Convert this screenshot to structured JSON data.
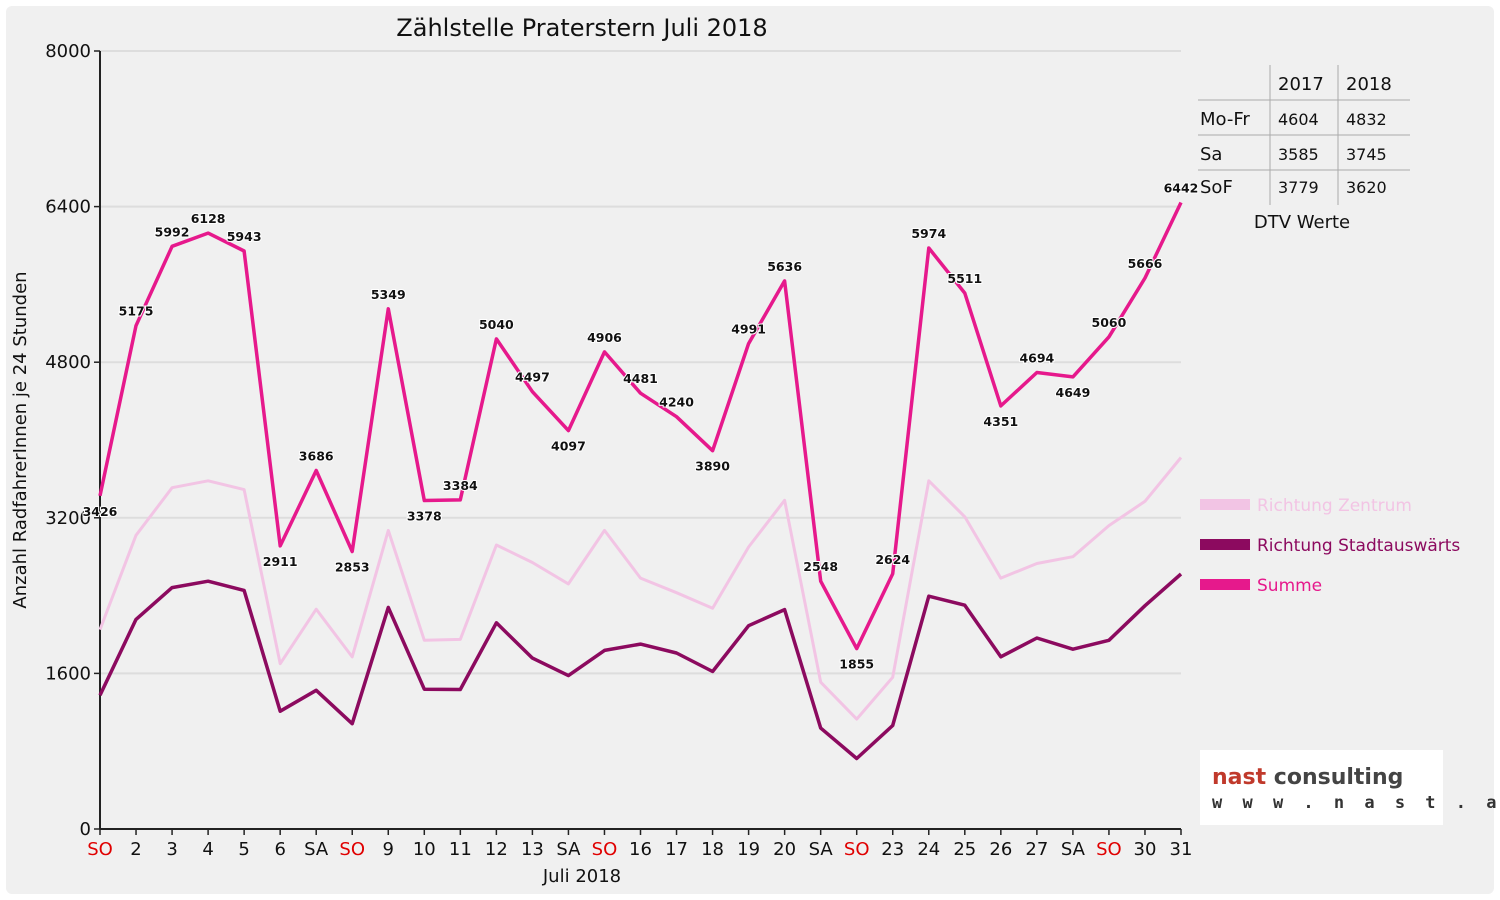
{
  "chart_data": {
    "type": "line",
    "title": "Zählstelle Praterstern Juli 2018",
    "xlabel": "Juli 2018",
    "ylabel": "Anzahl RadfahrerInnen je 24 Stunden",
    "ylim": [
      0,
      8000
    ],
    "yticks": [
      "0",
      "1600",
      "3200",
      "4800",
      "6400",
      "8000"
    ],
    "grid": true,
    "legend_position": "right",
    "categories": [
      "SO",
      "2",
      "3",
      "4",
      "5",
      "6",
      "SA",
      "SO",
      "9",
      "10",
      "11",
      "12",
      "13",
      "SA",
      "SO",
      "16",
      "17",
      "18",
      "19",
      "20",
      "SA",
      "SO",
      "23",
      "24",
      "25",
      "26",
      "27",
      "SA",
      "SO",
      "30",
      "31"
    ],
    "red_categories": [
      0,
      7,
      14,
      21,
      28
    ],
    "series": [
      {
        "name": "Richtung Zentrum",
        "color": "#f2c4e4",
        "values": [
          2050,
          3020,
          3510,
          3580,
          3490,
          1700,
          2260,
          1770,
          3070,
          1940,
          1950,
          2920,
          2740,
          2520,
          3070,
          2580,
          2430,
          2270,
          2900,
          3380,
          1510,
          1130,
          1560,
          3580,
          3210,
          2580,
          2730,
          2800,
          3120,
          3370,
          3820
        ]
      },
      {
        "name": "Richtung Stadtauswärts",
        "color": "#8c0a5f",
        "values": [
          1376,
          2155,
          2482,
          2548,
          2453,
          1211,
          1426,
          1083,
          2279,
          1438,
          1434,
          2120,
          1757,
          1577,
          1836,
          1901,
          1810,
          1620,
          2091,
          2256,
          1038,
          725,
          1064,
          2394,
          2301,
          1771,
          1964,
          1849,
          1940,
          2296,
          2622
        ]
      },
      {
        "name": "Summe",
        "color": "#e6198c",
        "values": [
          3426,
          5175,
          5992,
          6128,
          5943,
          2911,
          3686,
          2853,
          5349,
          3378,
          3384,
          5040,
          4497,
          4097,
          4906,
          4481,
          4240,
          3890,
          4991,
          5636,
          2548,
          1855,
          2624,
          5974,
          5511,
          4351,
          4694,
          4649,
          5060,
          5666,
          6442
        ]
      }
    ],
    "data_labels": [
      "3426",
      "5175",
      "5992",
      "6128",
      "5943",
      "2911",
      "3686",
      "2853",
      "5349",
      "3378",
      "3384",
      "5040",
      "4497",
      "4097",
      "4906",
      "4481",
      "4240",
      "3890",
      "4991",
      "5636",
      "2548",
      "1855",
      "2624",
      "5974",
      "5511",
      "4351",
      "4694",
      "4649",
      "5060",
      "5666",
      "6442"
    ]
  },
  "dtv_table": {
    "headers": [
      "",
      "2017",
      "2018"
    ],
    "rows": [
      [
        "Mo-Fr",
        "4604",
        "4832"
      ],
      [
        "Sa",
        "3585",
        "3745"
      ],
      [
        "SoF",
        "3779",
        "3620"
      ]
    ],
    "caption": "DTV Werte"
  },
  "logo": {
    "word1": "nast",
    "word2": "consulting",
    "url": "w w w . n a s t . a t",
    "color1": "#c0392b",
    "color2": "#444444"
  },
  "colors": {
    "grid": "#dddddd",
    "axis": "#222222",
    "weekend_red": "#e00000"
  }
}
